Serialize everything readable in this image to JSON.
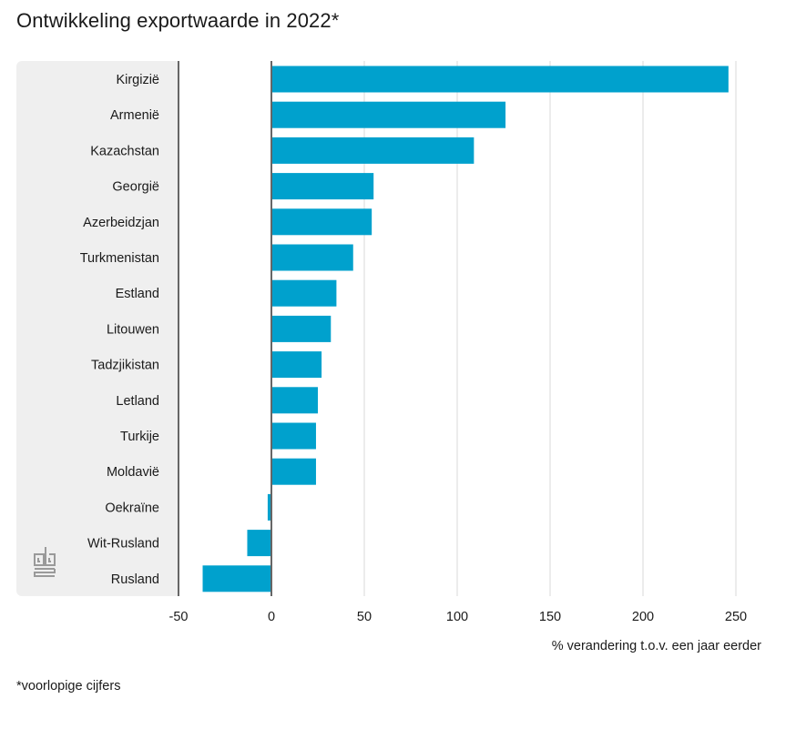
{
  "title": "Ontwikkeling exportwaarde in 2022*",
  "footnote": "*voorlopige cijfers",
  "logo_icon": "cbs-logo-icon",
  "colors": {
    "bar": "#00a1cd",
    "panel": "#efefef",
    "grid": "#d9d9d9",
    "axis": "#666666"
  },
  "chart_data": {
    "type": "bar",
    "orientation": "horizontal",
    "title": "Ontwikkeling exportwaarde in 2022*",
    "xlabel": "% verandering t.o.v. een jaar eerder",
    "ylabel": "",
    "xlim": [
      -50,
      250
    ],
    "xticks": [
      "-50",
      "0",
      "50",
      "100",
      "150",
      "200",
      "250"
    ],
    "grid": true,
    "categories": [
      "Kirgizië",
      "Armenië",
      "Kazachstan",
      "Georgië",
      "Azerbeidzjan",
      "Turkmenistan",
      "Estland",
      "Litouwen",
      "Tadzjikistan",
      "Letland",
      "Turkije",
      "Moldavië",
      "Oekraïne",
      "Wit-Rusland",
      "Rusland"
    ],
    "values": [
      246,
      126,
      109,
      55,
      54,
      44,
      35,
      32,
      27,
      25,
      24,
      24,
      -2,
      -13,
      -37
    ]
  }
}
